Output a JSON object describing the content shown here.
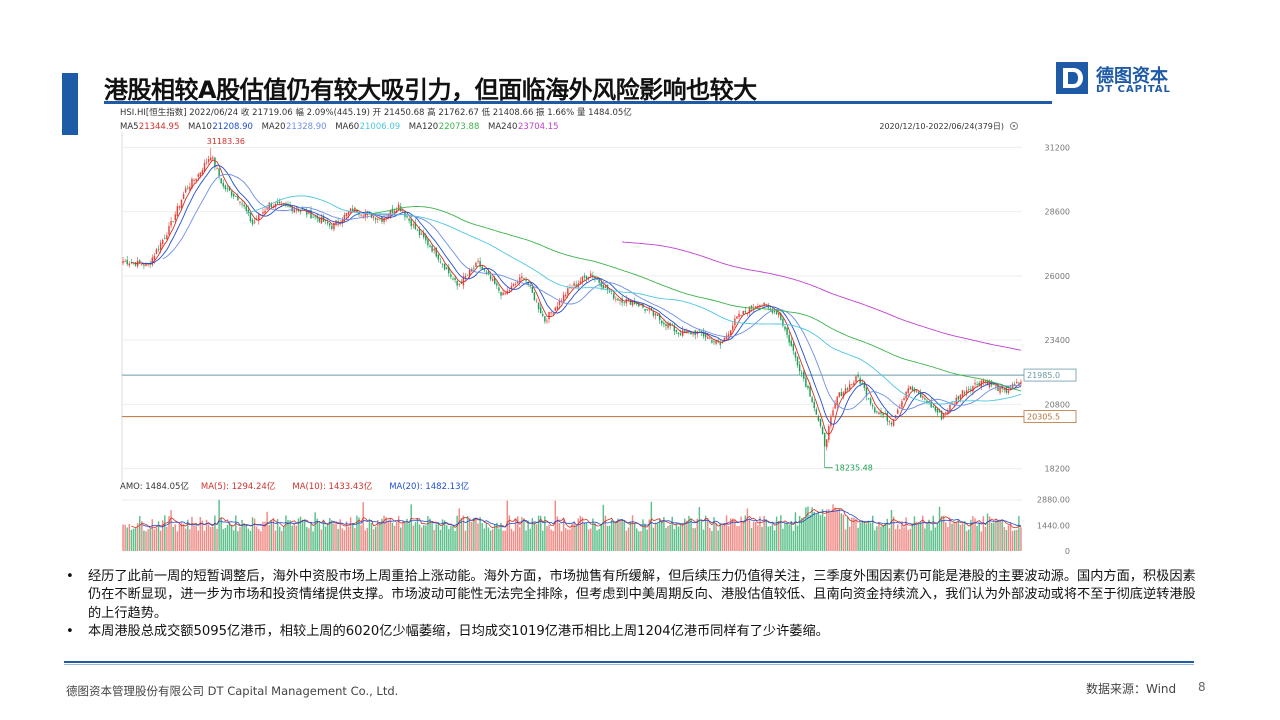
{
  "title": "港股相较A股估值仍有较大吸引力，但面临海外风险影响也较大",
  "logo": {
    "cn": "德图资本",
    "en": "DT CAPITAL"
  },
  "colors": {
    "brand": "#1f5aa6",
    "up": "#e8433a",
    "down": "#1a9e55",
    "ma5": "#d2302b",
    "ma10": "#1f4fd1",
    "ma20": "#6f8fe6",
    "ma60": "#4ec6e0",
    "ma120": "#3cb44b",
    "ma240": "#c040d0"
  },
  "chart_data": {
    "type": "candlestick",
    "info_line1": [
      "HSI.HI[恒生指数]",
      "2022/06/24",
      "收 21719.06",
      "幅 2.09%(445.19)",
      "开 21450.68",
      "高 21762.67",
      "低 21408.66",
      "振 1.66%",
      "量 1484.05亿"
    ],
    "ma_legend": [
      {
        "name": "MA5",
        "value": "21344.95"
      },
      {
        "name": "MA10",
        "value": "21208.90"
      },
      {
        "name": "MA20",
        "value": "21328.90"
      },
      {
        "name": "MA60",
        "value": "21006.09"
      },
      {
        "name": "MA120",
        "value": "22073.88"
      },
      {
        "name": "MA240",
        "value": "23704.15"
      }
    ],
    "date_range": "2020/12/10-2022/06/24(379日)",
    "y_ticks": [
      31200,
      28600,
      26000,
      23400,
      20800,
      18200
    ],
    "ylim": [
      17900,
      31500
    ],
    "annotations": {
      "high": "31183.36",
      "low": "18235.48"
    },
    "h_lines": [
      {
        "value": 21985,
        "label": "21985.0"
      },
      {
        "value": 20305,
        "label": "20305.5"
      }
    ],
    "anchors": [
      [
        0,
        26600
      ],
      [
        12,
        26450
      ],
      [
        22,
        27900
      ],
      [
        30,
        29500
      ],
      [
        36,
        30100
      ],
      [
        42,
        30900
      ],
      [
        48,
        29600
      ],
      [
        56,
        29100
      ],
      [
        62,
        28100
      ],
      [
        70,
        28900
      ],
      [
        84,
        28700
      ],
      [
        94,
        28300
      ],
      [
        100,
        28000
      ],
      [
        110,
        28700
      ],
      [
        124,
        28300
      ],
      [
        132,
        28850
      ],
      [
        140,
        27900
      ],
      [
        150,
        26900
      ],
      [
        160,
        25600
      ],
      [
        170,
        26500
      ],
      [
        182,
        25200
      ],
      [
        192,
        26000
      ],
      [
        202,
        24200
      ],
      [
        214,
        25500
      ],
      [
        224,
        26100
      ],
      [
        236,
        25100
      ],
      [
        246,
        24900
      ],
      [
        256,
        24300
      ],
      [
        266,
        23700
      ],
      [
        276,
        23700
      ],
      [
        286,
        23200
      ],
      [
        294,
        24300
      ],
      [
        304,
        24900
      ],
      [
        314,
        24500
      ],
      [
        322,
        22700
      ],
      [
        330,
        21000
      ],
      [
        336,
        19200
      ],
      [
        342,
        21100
      ],
      [
        352,
        21900
      ],
      [
        360,
        20600
      ],
      [
        368,
        20100
      ],
      [
        376,
        21500
      ],
      [
        384,
        21000
      ],
      [
        392,
        20300
      ],
      [
        402,
        21300
      ],
      [
        412,
        21800
      ],
      [
        422,
        21300
      ],
      [
        430,
        21719
      ]
    ],
    "amo_legend": [
      {
        "name": "AMO",
        "value": "1484.05亿"
      },
      {
        "name": "MA(5)",
        "value": "1294.24亿"
      },
      {
        "name": "MA(10)",
        "value": "1433.43亿"
      },
      {
        "name": "MA(20)",
        "value": "1482.13亿"
      }
    ],
    "amo_ticks": [
      "2880.00",
      "1440.00",
      "0"
    ],
    "amo_ylim": [
      0,
      3300
    ]
  },
  "notes": [
    "经历了此前一周的短暂调整后，海外中资股市场上周重拾上涨动能。海外方面，市场抛售有所缓解，但后续压力仍值得关注，三季度外围因素仍可能是港股的主要波动源。国内方面，积极因素仍在不断显现，进一步为市场和投资情绪提供支撑。市场波动可能性无法完全排除，但考虑到中美周期反向、港股估值较低、且南向资金持续流入，我们认为外部波动或将不至于彻底逆转港股的上行趋势。",
    "本周港股总成交额5095亿港币，相较上周的6020亿少幅萎缩，日均成交1019亿港币相比上周1204亿港币同样有了少许萎缩。"
  ],
  "footer": {
    "company": "德图资本管理股份有限公司  DT Capital Management Co., Ltd.",
    "source": "数据来源：Wind",
    "page": "8"
  }
}
